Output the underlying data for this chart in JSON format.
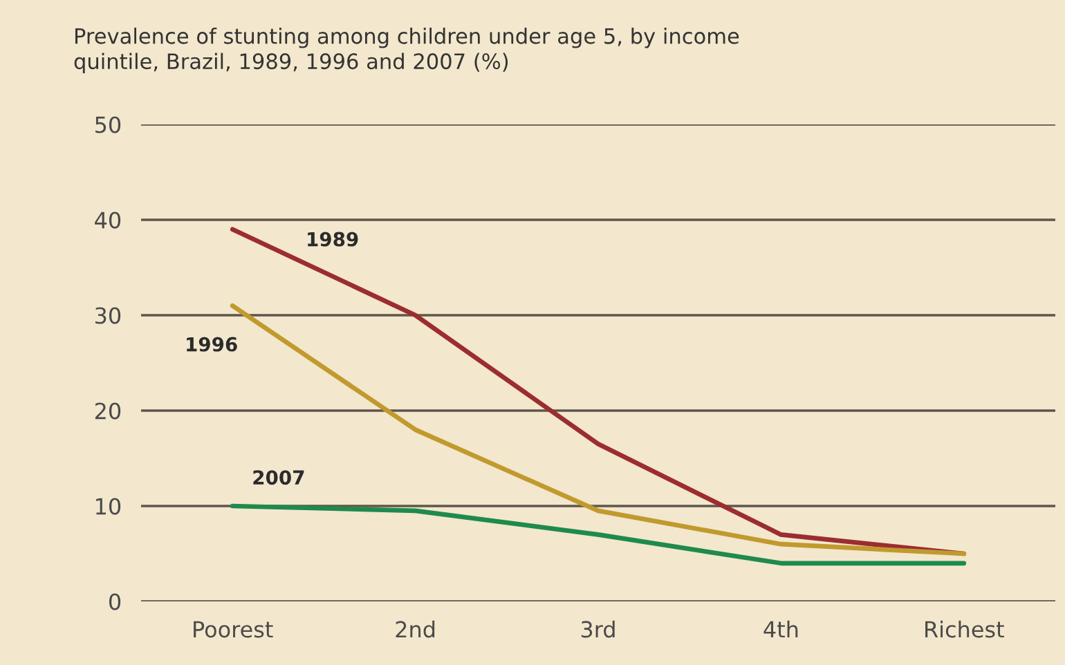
{
  "chart_data": {
    "type": "line",
    "title": "Prevalence of stunting among children under age 5, by income\nquintile, Brazil, 1989, 1996 and 2007 (%)",
    "categories": [
      "Poorest",
      "2nd",
      "3rd",
      "4th",
      "Richest"
    ],
    "series": [
      {
        "name": "1989",
        "color": "#9b2d30",
        "values": [
          39,
          30,
          16.5,
          7,
          5
        ]
      },
      {
        "name": "1996",
        "color": "#c19a2e",
        "values": [
          31,
          18,
          9.5,
          6,
          5
        ]
      },
      {
        "name": "2007",
        "color": "#1f8a4e",
        "values": [
          10,
          9.5,
          7,
          4,
          4
        ]
      }
    ],
    "ylim": [
      0,
      50
    ],
    "yticks": [
      0,
      10,
      20,
      30,
      40,
      50
    ],
    "grid": "y",
    "legend": false,
    "marker": "none",
    "line_style": "solid"
  }
}
